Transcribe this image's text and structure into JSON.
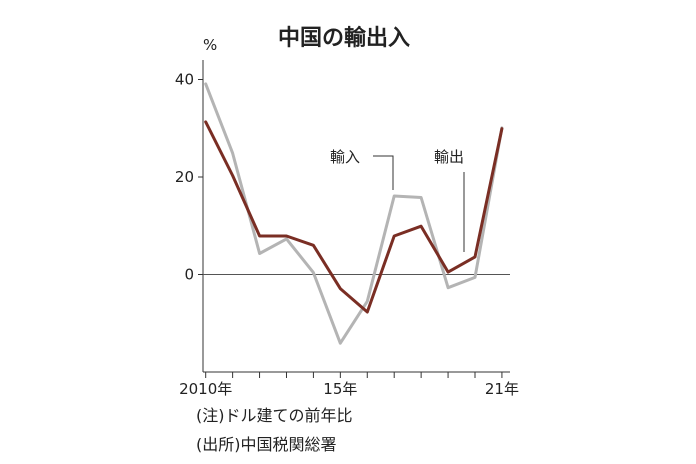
{
  "chart_data": {
    "type": "line",
    "title": "中国の輸出入",
    "unit": "%",
    "x": [
      2010,
      2011,
      2012,
      2013,
      2014,
      2015,
      2016,
      2017,
      2018,
      2019,
      2020,
      2021
    ],
    "x_tick_labels": [
      {
        "x": 2010,
        "label": "2010年"
      },
      {
        "x": 2015,
        "label": "15年"
      },
      {
        "x": 2021,
        "label": "21年"
      }
    ],
    "y_ticks": [
      0,
      20,
      40
    ],
    "ylim": [
      -20,
      44
    ],
    "xlim": [
      2009.9,
      2021.3
    ],
    "series": [
      {
        "name": "輸入",
        "color": "#b4b4b4",
        "values": [
          39.1,
          24.9,
          4.3,
          7.3,
          0.4,
          -14.1,
          -5.5,
          16.1,
          15.8,
          -2.7,
          -0.6,
          30.1
        ]
      },
      {
        "name": "輸出",
        "color": "#7a2e24",
        "values": [
          31.3,
          20.3,
          7.9,
          7.9,
          6.0,
          -2.9,
          -7.7,
          7.9,
          9.9,
          0.5,
          3.6,
          29.9
        ]
      }
    ],
    "notes": [
      "(注)ドル建ての前年比",
      "(出所)中国税関総署"
    ]
  }
}
